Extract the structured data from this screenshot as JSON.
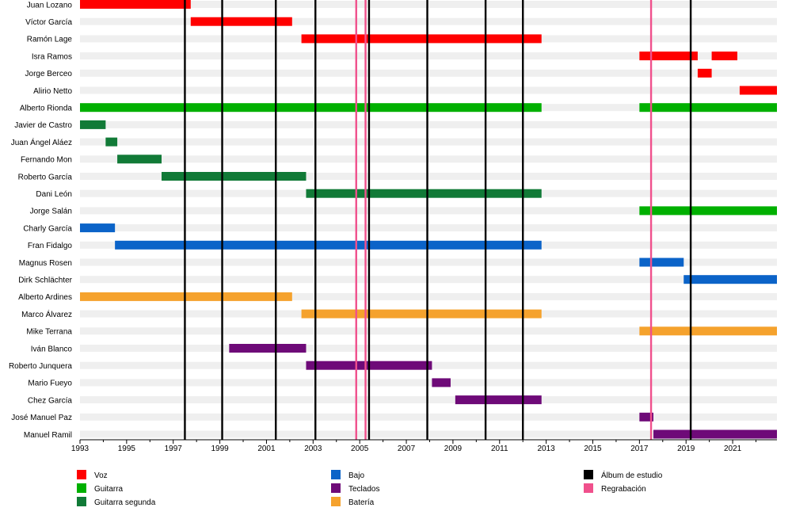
{
  "chart_data": {
    "type": "timeline",
    "title": "",
    "x_range": [
      1993.0,
      2022.9
    ],
    "x_ticks": [
      "1993",
      "1995",
      "1997",
      "1999",
      "2001",
      "2003",
      "2005",
      "2007",
      "2009",
      "2011",
      "2013",
      "2015",
      "2017",
      "2019",
      "2021"
    ],
    "grid": true,
    "legend_position": "bottom",
    "colors": {
      "Voz": "#ff0000",
      "Guitarra": "#00b000",
      "Guitarra segunda": "#117a37",
      "Bajo": "#0b63c8",
      "Teclados": "#6e0a78",
      "Batería": "#f5a22d",
      "Álbum de estudio": "#000000",
      "Regrabación": "#f0508c"
    },
    "members": [
      {
        "name": "Juan Lozano",
        "role": "Voz",
        "periods": [
          [
            1993.0,
            1997.75
          ]
        ]
      },
      {
        "name": "Víctor García",
        "role": "Voz",
        "periods": [
          [
            1997.75,
            2002.1
          ]
        ]
      },
      {
        "name": "Ramón Lage",
        "role": "Voz",
        "periods": [
          [
            2002.5,
            2012.8
          ]
        ]
      },
      {
        "name": "Isra Ramos",
        "role": "Voz",
        "periods": [
          [
            2017.0,
            2019.5
          ],
          [
            2020.1,
            2021.2
          ]
        ]
      },
      {
        "name": "Jorge Berceo",
        "role": "Voz",
        "periods": [
          [
            2019.5,
            2020.1
          ]
        ]
      },
      {
        "name": "Alirio Netto",
        "role": "Voz",
        "periods": [
          [
            2021.3,
            2022.9
          ]
        ]
      },
      {
        "name": "Alberto Rionda",
        "role": "Guitarra",
        "periods": [
          [
            1993.0,
            2012.8
          ],
          [
            2017.0,
            2022.9
          ]
        ]
      },
      {
        "name": "Javier de Castro",
        "role": "Guitarra segunda",
        "periods": [
          [
            1993.0,
            1994.1
          ]
        ]
      },
      {
        "name": "Juan Ángel Aláez",
        "role": "Guitarra segunda",
        "periods": [
          [
            1994.1,
            1994.6
          ]
        ]
      },
      {
        "name": "Fernando Mon",
        "role": "Guitarra segunda",
        "periods": [
          [
            1994.6,
            1996.5
          ]
        ]
      },
      {
        "name": "Roberto García",
        "role": "Guitarra segunda",
        "periods": [
          [
            1996.5,
            2002.7
          ]
        ]
      },
      {
        "name": "Dani León",
        "role": "Guitarra segunda",
        "periods": [
          [
            2002.7,
            2012.8
          ]
        ]
      },
      {
        "name": "Jorge Salán",
        "role": "Guitarra",
        "periods": [
          [
            2017.0,
            2022.9
          ]
        ]
      },
      {
        "name": "Charly García",
        "role": "Bajo",
        "periods": [
          [
            1993.0,
            1994.5
          ]
        ]
      },
      {
        "name": "Fran Fidalgo",
        "role": "Bajo",
        "periods": [
          [
            1994.5,
            2012.8
          ]
        ]
      },
      {
        "name": "Magnus Rosen",
        "role": "Bajo",
        "periods": [
          [
            2017.0,
            2018.9
          ]
        ]
      },
      {
        "name": "Dirk Schlächter",
        "role": "Bajo",
        "periods": [
          [
            2018.9,
            2022.9
          ]
        ]
      },
      {
        "name": "Alberto Ardines",
        "role": "Batería",
        "periods": [
          [
            1993.0,
            2002.1
          ]
        ]
      },
      {
        "name": "Marco Álvarez",
        "role": "Batería",
        "periods": [
          [
            2002.5,
            2012.8
          ]
        ]
      },
      {
        "name": "Mike Terrana",
        "role": "Batería",
        "periods": [
          [
            2017.0,
            2022.9
          ]
        ]
      },
      {
        "name": "Iván Blanco",
        "role": "Teclados",
        "periods": [
          [
            1999.4,
            2002.7
          ]
        ]
      },
      {
        "name": "Roberto Junquera",
        "role": "Teclados",
        "periods": [
          [
            2002.7,
            2008.1
          ]
        ]
      },
      {
        "name": "Mario Fueyo",
        "role": "Teclados",
        "periods": [
          [
            2008.1,
            2008.9
          ]
        ]
      },
      {
        "name": "Chez García",
        "role": "Teclados",
        "periods": [
          [
            2009.1,
            2012.8
          ]
        ]
      },
      {
        "name": "José Manuel Paz",
        "role": "Teclados",
        "periods": [
          [
            2017.0,
            2017.6
          ]
        ]
      },
      {
        "name": "Manuel Ramil",
        "role": "Teclados",
        "periods": [
          [
            2017.6,
            2022.9
          ]
        ]
      }
    ],
    "studio_albums": [
      1997.5,
      1999.1,
      2001.4,
      2003.1,
      2005.4,
      2007.9,
      2010.4,
      2012.0,
      2019.2
    ],
    "rerecordings": [
      2004.85,
      2005.25,
      2017.5
    ],
    "legend": [
      {
        "label": "Voz",
        "key": "Voz"
      },
      {
        "label": "Guitarra",
        "key": "Guitarra"
      },
      {
        "label": "Guitarra segunda",
        "key": "Guitarra segunda"
      },
      {
        "label": "Bajo",
        "key": "Bajo"
      },
      {
        "label": "Teclados",
        "key": "Teclados"
      },
      {
        "label": "Batería",
        "key": "Batería"
      },
      {
        "label": "Álbum de estudio",
        "key": "Álbum de estudio"
      },
      {
        "label": "Regrabación",
        "key": "Regrabación"
      }
    ]
  }
}
